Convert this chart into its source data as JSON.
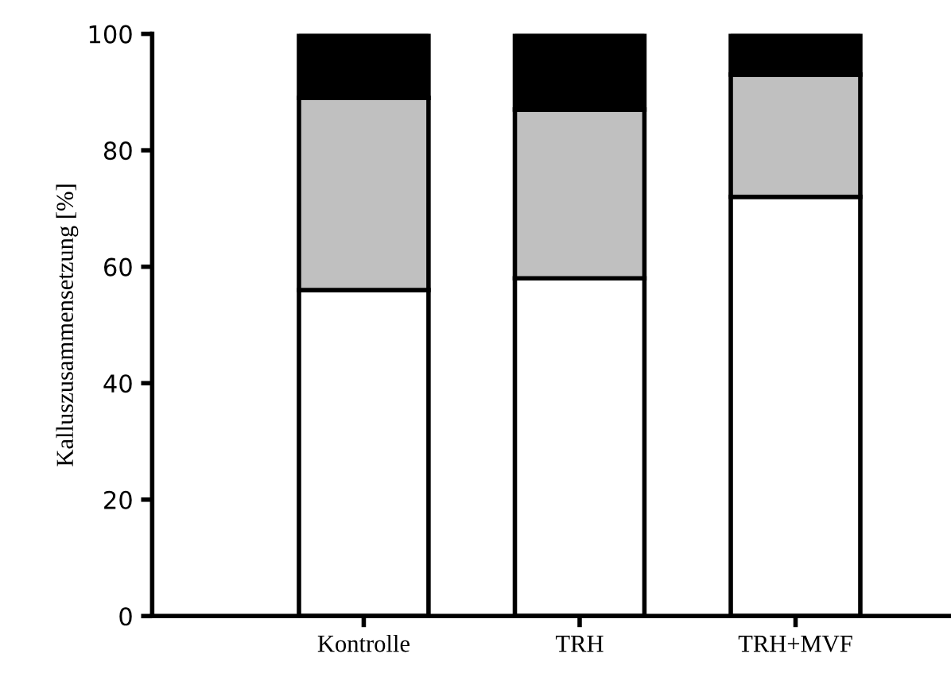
{
  "chart_data": {
    "type": "bar",
    "stacked": true,
    "ylabel": "Kalluszusammensetzung [%]",
    "categories": [
      "Kontrolle",
      "TRH",
      "TRH+MVF"
    ],
    "series": [
      {
        "color": "#ffffff",
        "values": [
          56,
          58,
          72
        ]
      },
      {
        "color": "#c0c0c0",
        "values": [
          33,
          29,
          21
        ]
      },
      {
        "color": "#000000",
        "values": [
          11,
          13,
          7
        ]
      }
    ],
    "ylim": [
      0,
      100
    ],
    "yticks": [
      0,
      20,
      40,
      60,
      80,
      100
    ],
    "grid": false,
    "legend": false
  }
}
